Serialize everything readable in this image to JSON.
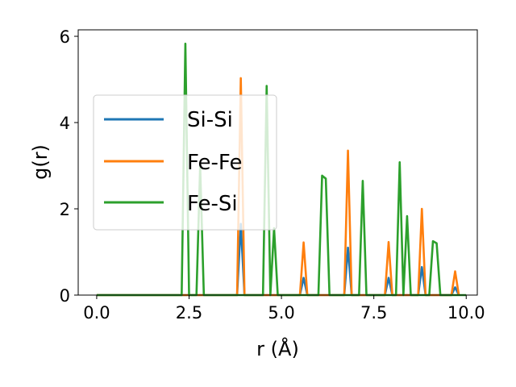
{
  "chart_data": {
    "type": "line",
    "xlabel": "r (Å)",
    "ylabel": "g(r)",
    "xlim": [
      -0.5,
      10.3
    ],
    "ylim": [
      0,
      6.15
    ],
    "xticks": [
      "0.0",
      "2.5",
      "5.0",
      "7.5",
      "10.0"
    ],
    "yticks": [
      "0",
      "2",
      "4",
      "6"
    ],
    "grid": false,
    "legend_position": "center-left",
    "series": [
      {
        "name": "Si-Si",
        "color": "#1f77b4",
        "x": [
          0.0,
          3.8,
          3.9,
          4.0,
          5.5,
          5.6,
          5.7,
          6.7,
          6.8,
          6.9,
          7.8,
          7.9,
          8.0,
          8.7,
          8.8,
          8.9,
          9.6,
          9.7,
          9.8
        ],
        "y": [
          0.0,
          0.0,
          1.65,
          0.0,
          0.0,
          0.4,
          0.0,
          0.0,
          1.1,
          0.0,
          0.0,
          0.4,
          0.0,
          0.0,
          0.65,
          0.0,
          0.0,
          0.18,
          0.0
        ]
      },
      {
        "name": "Fe-Fe",
        "color": "#ff7f0e",
        "x": [
          0.0,
          3.8,
          3.9,
          4.0,
          5.5,
          5.6,
          5.7,
          6.7,
          6.8,
          6.9,
          7.8,
          7.9,
          8.0,
          8.7,
          8.8,
          8.9,
          9.6,
          9.7,
          9.8
        ],
        "y": [
          0.0,
          0.0,
          5.03,
          0.0,
          0.0,
          1.22,
          0.0,
          0.0,
          3.35,
          0.0,
          0.0,
          1.23,
          0.0,
          0.0,
          2.0,
          0.0,
          0.0,
          0.55,
          0.0
        ]
      },
      {
        "name": "Fe-Si",
        "color": "#2ca02c",
        "x": [
          0.0,
          2.3,
          2.4,
          2.5,
          2.7,
          2.8,
          2.9,
          4.5,
          4.6,
          4.7,
          4.8,
          4.9,
          6.0,
          6.1,
          6.2,
          6.3,
          7.1,
          7.2,
          7.3,
          8.1,
          8.2,
          8.3,
          8.4,
          8.5,
          9.0,
          9.1,
          9.2,
          9.3,
          10.0
        ],
        "y": [
          0.0,
          0.0,
          5.83,
          0.0,
          0.0,
          3.0,
          0.0,
          0.0,
          4.85,
          0.0,
          1.55,
          0.0,
          0.0,
          2.77,
          2.7,
          0.0,
          0.0,
          2.65,
          0.0,
          0.0,
          3.08,
          0.0,
          1.83,
          0.0,
          0.0,
          1.25,
          1.2,
          0.0,
          0.0
        ]
      }
    ]
  }
}
